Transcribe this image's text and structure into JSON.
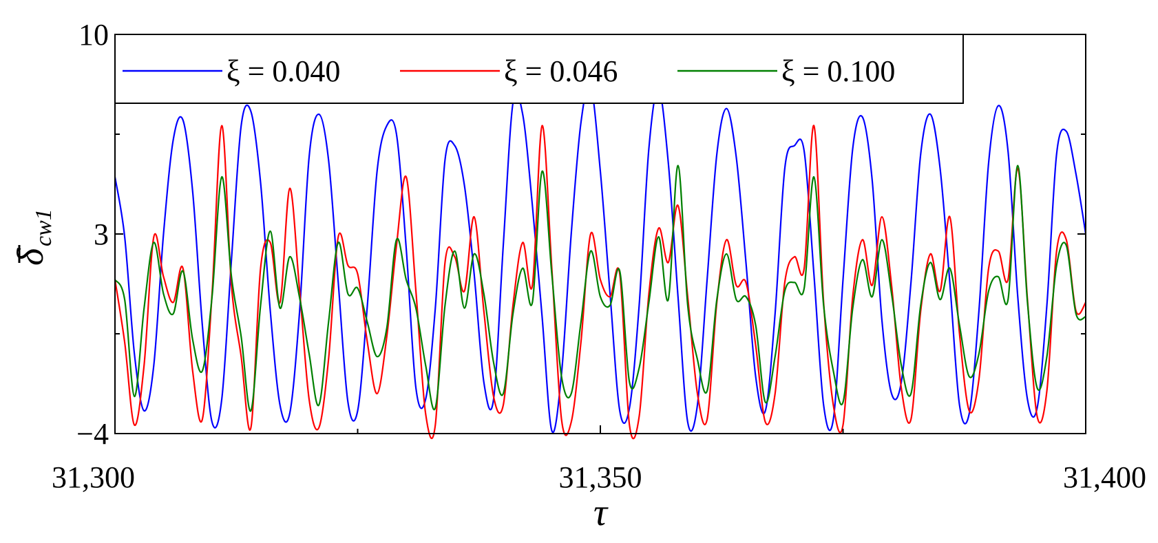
{
  "chart_data": {
    "type": "line",
    "title": "",
    "xlabel": "τ",
    "ylabel": "δ̄cw1",
    "ylabel_parts": {
      "symbol": "δ",
      "sub": "cw1"
    },
    "xlim": [
      31300,
      31400
    ],
    "ylim": [
      -4,
      10
    ],
    "x_ticks": [
      31300,
      31350,
      31400
    ],
    "x_tick_labels": [
      "31,300",
      "31,350",
      "31,400"
    ],
    "y_ticks": [
      -4,
      3,
      10
    ],
    "y_tick_labels": [
      "−4",
      "3",
      "10"
    ],
    "grid": false,
    "legend": {
      "placement": "top",
      "columns": 3
    },
    "series": [
      {
        "name": "ξ = 0.040",
        "color": "#0000ff",
        "x": [
          31300,
          31301,
          31302,
          31303,
          31304,
          31305,
          31306,
          31307,
          31308,
          31309,
          31310,
          31311,
          31312,
          31313,
          31314,
          31315,
          31316,
          31317,
          31318,
          31319,
          31320,
          31321,
          31322,
          31323,
          31324,
          31325,
          31326,
          31327,
          31328,
          31329,
          31330,
          31331,
          31332,
          31333,
          31334,
          31335,
          31336,
          31337,
          31338,
          31339,
          31340,
          31341,
          31342,
          31343,
          31344,
          31345,
          31346,
          31347,
          31348,
          31349,
          31350,
          31351,
          31352,
          31353,
          31354,
          31355,
          31356,
          31357,
          31358,
          31359,
          31360,
          31361,
          31362,
          31363,
          31364,
          31365,
          31366,
          31367,
          31368,
          31369,
          31370,
          31371,
          31372,
          31373,
          31374,
          31375,
          31376,
          31377,
          31378,
          31379,
          31380,
          31381,
          31382,
          31383,
          31384,
          31385,
          31386,
          31387,
          31388,
          31389,
          31390,
          31391,
          31392,
          31393,
          31394,
          31395,
          31396,
          31397,
          31398,
          31399,
          31400
        ],
        "y": [
          5.0,
          2.9,
          -1.2,
          -3.2,
          -1.6,
          3.0,
          6.3,
          7.0,
          4.5,
          -0.2,
          -3.6,
          -2.8,
          2.1,
          6.8,
          7.3,
          4.8,
          0.3,
          -3.0,
          -3.3,
          0.2,
          5.7,
          7.2,
          5.6,
          1.3,
          -2.9,
          -3.2,
          0.5,
          5.2,
          6.8,
          6.5,
          2.5,
          -2.4,
          -2.8,
          0.4,
          5.6,
          6.1,
          4.7,
          1.6,
          -2.2,
          -2.8,
          2.6,
          7.6,
          7.2,
          4.0,
          0.1,
          -3.9,
          -1.9,
          3.0,
          6.9,
          8.2,
          5.2,
          0.9,
          -3.2,
          -3.1,
          0.5,
          6.0,
          8.1,
          5.5,
          0.8,
          -3.6,
          -3.0,
          1.4,
          5.8,
          7.4,
          5.7,
          2.0,
          -2.0,
          -3.2,
          0.2,
          5.3,
          6.1,
          5.9,
          1.6,
          -3.0,
          -3.5,
          1.4,
          6.0,
          7.1,
          4.9,
          0.0,
          -2.6,
          -2.2,
          1.3,
          5.8,
          7.2,
          5.3,
          1.3,
          -3.0,
          -3.3,
          0.3,
          5.5,
          7.5,
          5.9,
          0.8,
          -2.8,
          -3.1,
          0.5,
          5.8,
          6.6,
          5.1,
          3.0
        ]
      },
      {
        "name": "ξ = 0.046",
        "color": "#ff0000",
        "x": [
          31300,
          31301,
          31302,
          31303,
          31304,
          31305,
          31306,
          31307,
          31308,
          31309,
          31310,
          31311,
          31312,
          31313,
          31314,
          31315,
          31316,
          31317,
          31318,
          31319,
          31320,
          31321,
          31322,
          31323,
          31324,
          31325,
          31326,
          31327,
          31328,
          31329,
          31330,
          31331,
          31332,
          31333,
          31334,
          31335,
          31336,
          31337,
          31338,
          31339,
          31340,
          31341,
          31342,
          31343,
          31344,
          31345,
          31346,
          31347,
          31348,
          31349,
          31350,
          31351,
          31352,
          31353,
          31354,
          31355,
          31356,
          31357,
          31358,
          31359,
          31360,
          31361,
          31362,
          31363,
          31364,
          31365,
          31366,
          31367,
          31368,
          31369,
          31370,
          31371,
          31372,
          31373,
          31374,
          31375,
          31376,
          31377,
          31378,
          31379,
          31380,
          31381,
          31382,
          31383,
          31384,
          31385,
          31386,
          31387,
          31388,
          31389,
          31390,
          31391,
          31392,
          31393,
          31394,
          31395,
          31396,
          31397,
          31398,
          31399,
          31400
        ],
        "y": [
          1.4,
          -0.8,
          -3.7,
          -1.6,
          2.9,
          1.5,
          0.6,
          1.8,
          -1.8,
          -3.5,
          0.9,
          6.8,
          1.2,
          -1.3,
          -3.8,
          1.8,
          2.7,
          0.6,
          4.6,
          1.1,
          -2.8,
          -3.8,
          -1.4,
          2.9,
          1.9,
          1.6,
          -0.8,
          -2.6,
          -0.6,
          2.6,
          5.0,
          1.0,
          -3.3,
          -3.7,
          2.0,
          2.2,
          1.0,
          3.6,
          0.3,
          -2.7,
          -3.0,
          0.5,
          2.7,
          1.2,
          6.8,
          1.8,
          -3.5,
          -3.6,
          -0.8,
          3.0,
          1.4,
          0.8,
          1.6,
          -3.7,
          -3.4,
          0.9,
          3.2,
          2.0,
          4.0,
          0.8,
          -2.6,
          -3.5,
          0.6,
          2.8,
          1.2,
          1.3,
          -0.9,
          -3.6,
          -2.6,
          1.3,
          2.2,
          1.8,
          6.8,
          0.6,
          -3.0,
          -3.7,
          0.8,
          2.8,
          1.2,
          3.6,
          1.2,
          -2.4,
          -3.5,
          0.3,
          2.3,
          1.0,
          3.6,
          -0.5,
          -3.2,
          -2.1,
          1.8,
          2.4,
          1.4,
          5.3,
          0.7,
          -3.4,
          -2.5,
          2.4,
          2.8,
          0.3,
          0.6
        ]
      },
      {
        "name": "ξ = 0.100",
        "color": "#008000",
        "x": [
          31300,
          31301,
          31302,
          31303,
          31304,
          31305,
          31306,
          31307,
          31308,
          31309,
          31310,
          31311,
          31312,
          31313,
          31314,
          31315,
          31316,
          31317,
          31318,
          31319,
          31320,
          31321,
          31322,
          31323,
          31324,
          31325,
          31326,
          31327,
          31328,
          31329,
          31330,
          31331,
          31332,
          31333,
          31334,
          31335,
          31336,
          31337,
          31338,
          31339,
          31340,
          31341,
          31342,
          31343,
          31344,
          31345,
          31346,
          31347,
          31348,
          31349,
          31350,
          31351,
          31352,
          31353,
          31354,
          31355,
          31356,
          31357,
          31358,
          31359,
          31360,
          31361,
          31362,
          31363,
          31364,
          31365,
          31366,
          31367,
          31368,
          31369,
          31370,
          31371,
          31372,
          31373,
          31374,
          31375,
          31376,
          31377,
          31378,
          31379,
          31380,
          31381,
          31382,
          31383,
          31384,
          31385,
          31386,
          31387,
          31388,
          31389,
          31390,
          31391,
          31392,
          31393,
          31394,
          31395,
          31396,
          31397,
          31398,
          31399,
          31400
        ],
        "y": [
          1.4,
          0.7,
          -2.7,
          0.4,
          2.7,
          0.9,
          0.2,
          1.7,
          -0.7,
          -1.8,
          0.8,
          5.0,
          1.5,
          -0.6,
          -3.2,
          0.5,
          3.1,
          0.4,
          2.2,
          0.8,
          -1.2,
          -3.0,
          -0.1,
          2.7,
          0.9,
          1.1,
          -0.1,
          -1.3,
          -0.3,
          2.8,
          1.4,
          0.4,
          -1.6,
          -3.1,
          0.5,
          2.4,
          0.4,
          2.3,
          0.9,
          -1.5,
          -2.6,
          0.2,
          1.8,
          0.6,
          5.2,
          1.6,
          -2.0,
          -2.6,
          -0.1,
          2.4,
          0.8,
          0.5,
          1.7,
          -2.2,
          -1.7,
          0.6,
          2.9,
          0.7,
          5.4,
          0.5,
          -1.4,
          -2.5,
          0.7,
          2.3,
          0.7,
          0.8,
          -0.2,
          -2.9,
          -1.3,
          1.0,
          1.3,
          1.1,
          5.0,
          0.5,
          -1.8,
          -2.9,
          0.4,
          2.1,
          0.8,
          2.8,
          0.9,
          -1.6,
          -2.6,
          0.5,
          2.0,
          0.7,
          1.8,
          -0.2,
          -2.0,
          -1.2,
          1.0,
          1.5,
          0.7,
          5.4,
          0.6,
          -2.4,
          -1.3,
          1.9,
          2.6,
          0.2,
          0.1
        ]
      }
    ]
  }
}
